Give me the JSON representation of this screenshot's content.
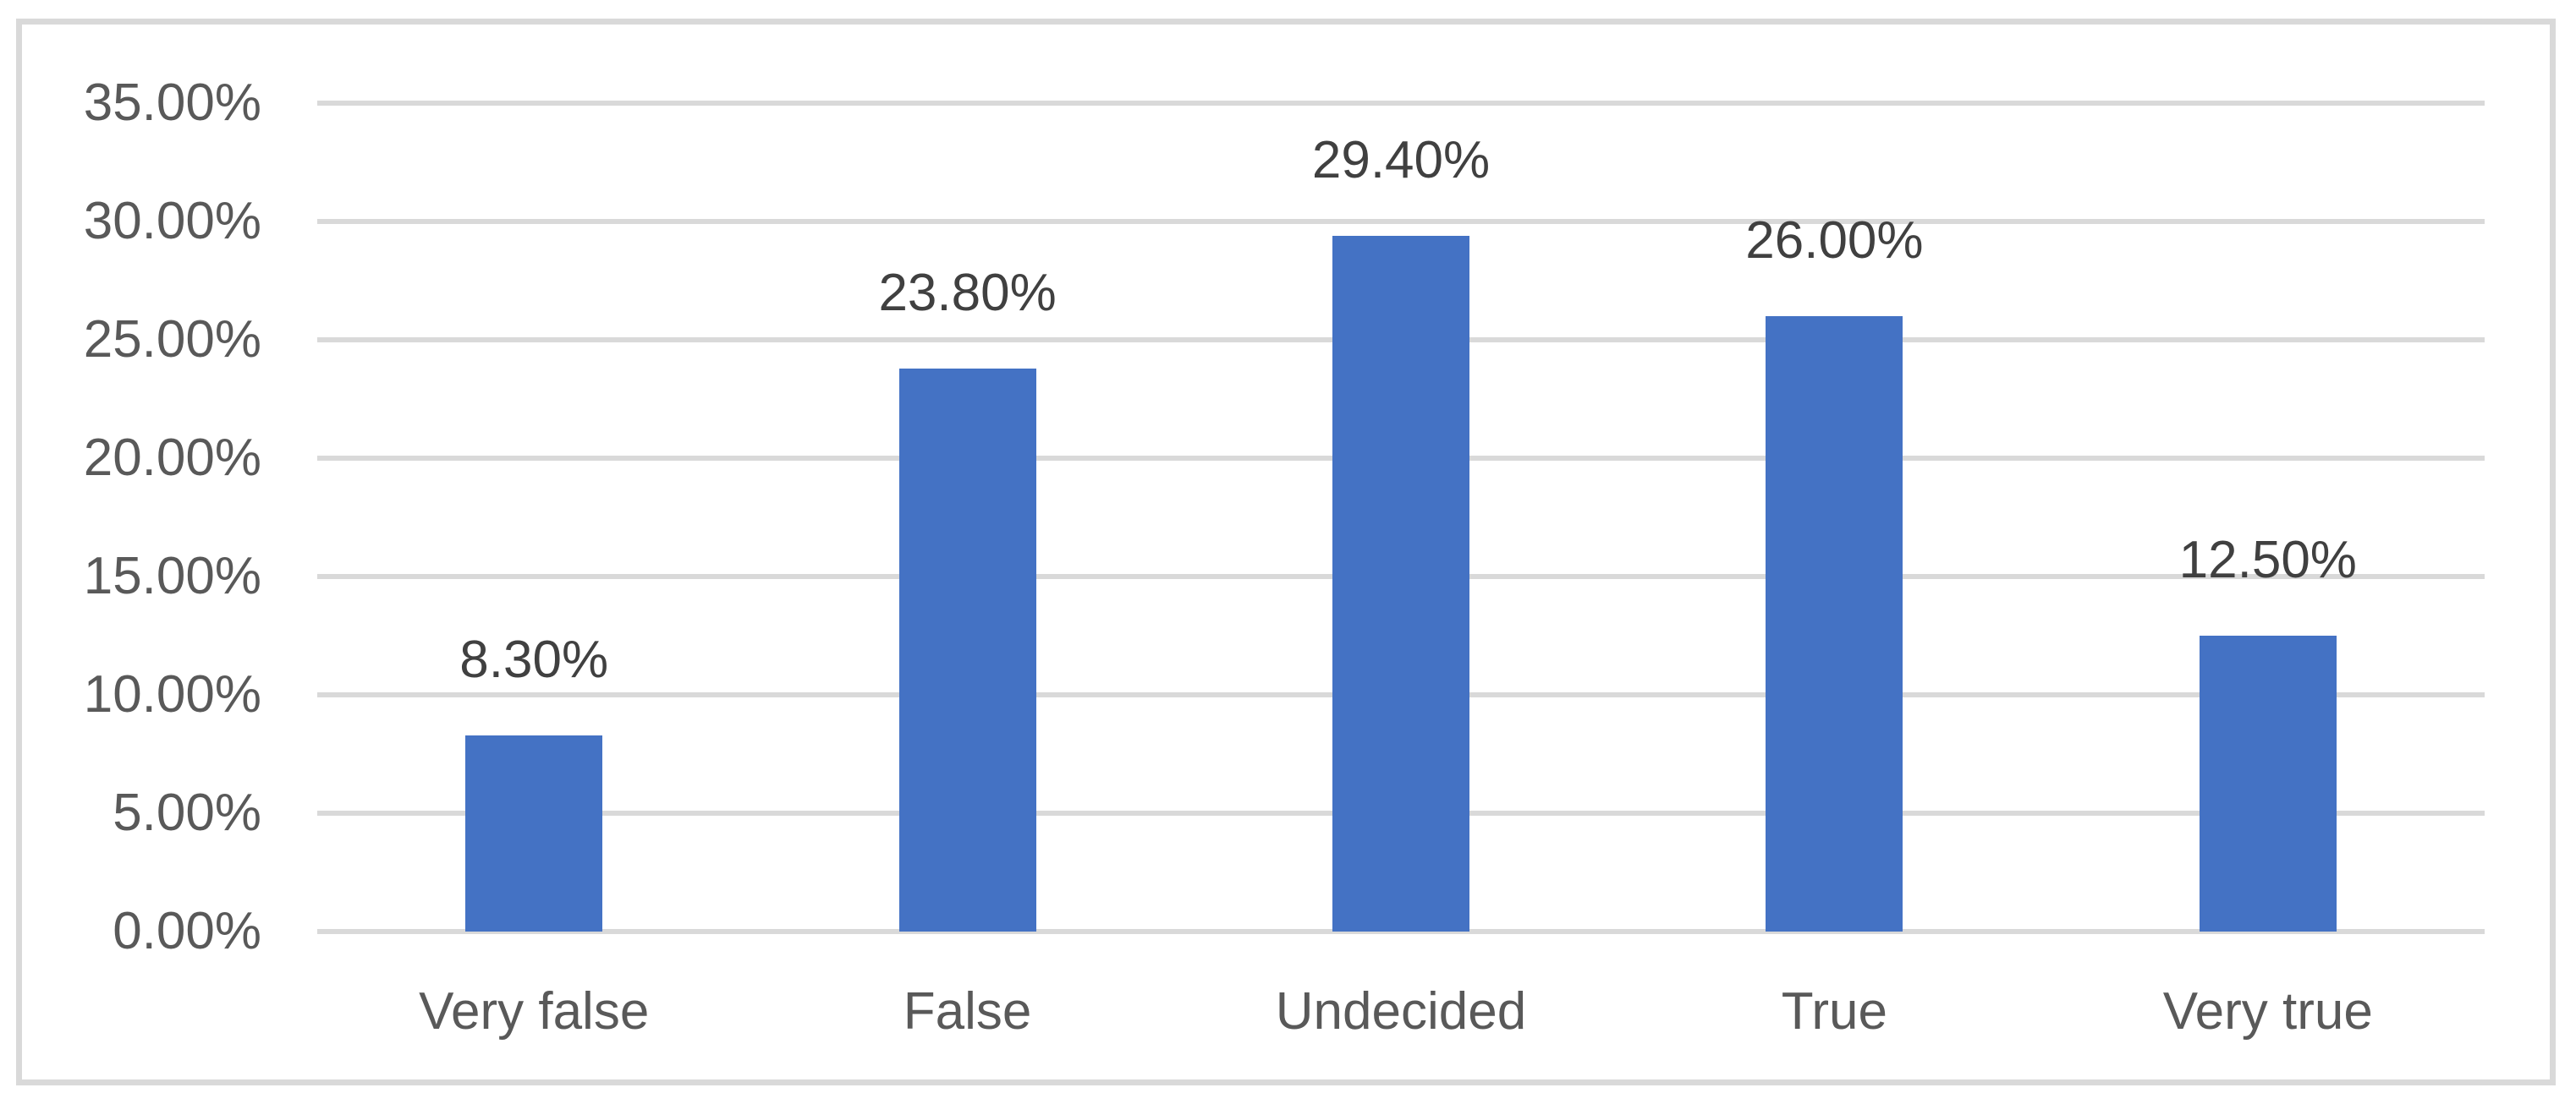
{
  "chart_data": {
    "type": "bar",
    "title": "",
    "xlabel": "",
    "ylabel": "",
    "categories": [
      "Very false",
      "False",
      "Undecided",
      "True",
      "Very true"
    ],
    "values": [
      8.3,
      23.8,
      29.4,
      26.0,
      12.5
    ],
    "value_labels": [
      "8.30%",
      "23.80%",
      "29.40%",
      "26.00%",
      "12.50%"
    ],
    "y_axis": {
      "min": 0,
      "max": 35,
      "step": 5,
      "tick_labels_top_to_bottom": [
        "35.00%",
        "30.00%",
        "25.00%",
        "20.00%",
        "15.00%",
        "10.00%",
        "5.00%",
        "0.00%"
      ]
    },
    "grid": "horizontal",
    "legend": "none",
    "colors": {
      "bar_fill": "#4472C4",
      "gridline": "#D9D9D9",
      "frame_border": "#D9D9D9",
      "axis_tick_text": "#595959",
      "category_text": "#595959",
      "value_label_text": "#404040",
      "background": "#FFFFFF"
    }
  }
}
